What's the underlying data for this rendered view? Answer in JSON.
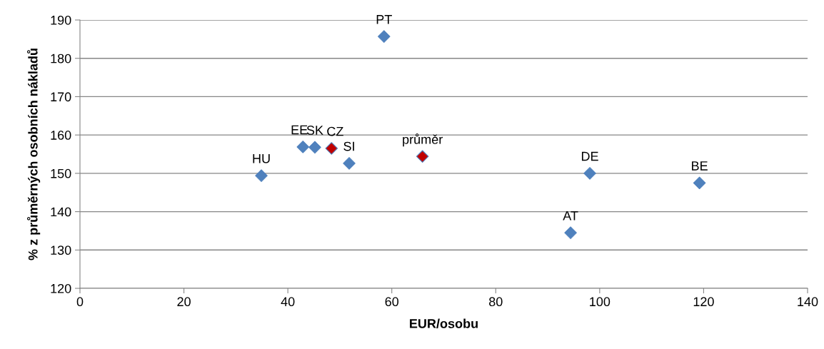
{
  "chart_data": {
    "type": "scatter",
    "xlabel": "EUR/osobu",
    "ylabel": "% z průměrných osobních nákladů",
    "xlim": [
      0,
      140
    ],
    "xticks": [
      0,
      20,
      40,
      60,
      80,
      100,
      120,
      140
    ],
    "ylim": [
      120,
      190
    ],
    "yticks": [
      120,
      130,
      140,
      150,
      160,
      170,
      180,
      190
    ],
    "grid": "y",
    "marker": "diamond",
    "series": [
      {
        "color": "#4f81bd",
        "x": [
          58.5,
          34.9,
          42.9,
          45.2,
          51.8,
          98.1,
          94.4,
          119.2
        ],
        "values": [
          185.7,
          149.4,
          156.9,
          156.8,
          152.6,
          150.0,
          134.5,
          147.5
        ]
      },
      {
        "color": "#c00000",
        "x": [
          48.4,
          65.9
        ],
        "values": [
          156.5,
          154.4
        ]
      }
    ],
    "annotations": [
      {
        "text": "PT",
        "x": 58.5,
        "y": 185.7
      },
      {
        "text": "HU",
        "x": 34.9,
        "y": 149.4
      },
      {
        "text": "EE",
        "x": 42.9,
        "y": 156.9
      },
      {
        "text": "SK",
        "x": 45.2,
        "y": 156.8
      },
      {
        "text": "CZ",
        "x": 48.4,
        "y": 156.5
      },
      {
        "text": "SI",
        "x": 51.8,
        "y": 152.6
      },
      {
        "text": "průměr",
        "x": 65.9,
        "y": 154.4
      },
      {
        "text": "DE",
        "x": 98.1,
        "y": 150.0
      },
      {
        "text": "AT",
        "x": 94.4,
        "y": 134.5
      },
      {
        "text": "BE",
        "x": 119.2,
        "y": 147.5
      }
    ]
  }
}
